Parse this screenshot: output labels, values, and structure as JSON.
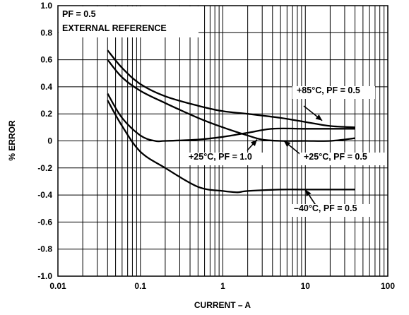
{
  "chart_data": {
    "type": "line",
    "xscale": "log",
    "xlim": [
      0.01,
      100
    ],
    "ylim": [
      -1.0,
      1.0
    ],
    "grid": true,
    "xlabel": "CURRENT – A",
    "ylabel": "% ERROR",
    "x_ticks": [
      "0.01",
      "0.1",
      "1",
      "10",
      "100"
    ],
    "y_ticks": [
      "1.0",
      "0.8",
      "0.6",
      "0.4",
      "0.2",
      "0",
      "-0.2",
      "-0.4",
      "-0.6",
      "-0.8",
      "-1.0"
    ],
    "notes": [
      "PF = 0.5",
      "EXTERNAL REFERENCE"
    ],
    "series": [
      {
        "name": "+85°C, PF = 0.5",
        "x": [
          0.04,
          0.06,
          0.1,
          0.2,
          0.5,
          1,
          2,
          5,
          10,
          20,
          40
        ],
        "y": [
          0.67,
          0.54,
          0.42,
          0.33,
          0.26,
          0.22,
          0.2,
          0.17,
          0.14,
          0.11,
          0.1
        ]
      },
      {
        "name": "+25°C, PF = 1.0",
        "x": [
          0.04,
          0.06,
          0.1,
          0.2,
          0.5,
          1,
          2,
          3,
          5,
          10,
          20,
          40
        ],
        "y": [
          0.6,
          0.47,
          0.37,
          0.28,
          0.17,
          0.1,
          0.04,
          0.01,
          0.0,
          0.0,
          0.0,
          0.02
        ]
      },
      {
        "name": "+25°C, PF = 0.5",
        "x": [
          0.04,
          0.06,
          0.1,
          0.15,
          0.2,
          0.5,
          1,
          2,
          4,
          10,
          20,
          40
        ],
        "y": [
          0.35,
          0.17,
          0.04,
          0.0,
          0.0,
          0.01,
          0.03,
          0.06,
          0.09,
          0.09,
          0.09,
          0.09
        ]
      },
      {
        "name": "–40°C, PF = 0.5",
        "x": [
          0.04,
          0.06,
          0.1,
          0.2,
          0.5,
          1,
          1.5,
          2,
          5,
          10,
          20,
          40
        ],
        "y": [
          0.3,
          0.11,
          -0.08,
          -0.2,
          -0.34,
          -0.37,
          -0.38,
          -0.37,
          -0.36,
          -0.36,
          -0.36,
          -0.36
        ]
      }
    ],
    "callouts": [
      {
        "label": "+85°C, PF = 0.5",
        "x": 16,
        "y": 0.15
      },
      {
        "label": "+25°C, PF = 1.0",
        "x": 2.6,
        "y": 0.01
      },
      {
        "label": "+25°C, PF = 0.5",
        "x": 5.5,
        "y": 0.0
      },
      {
        "label": "–40°C, PF = 0.5",
        "x": 10,
        "y": -0.36
      }
    ]
  }
}
